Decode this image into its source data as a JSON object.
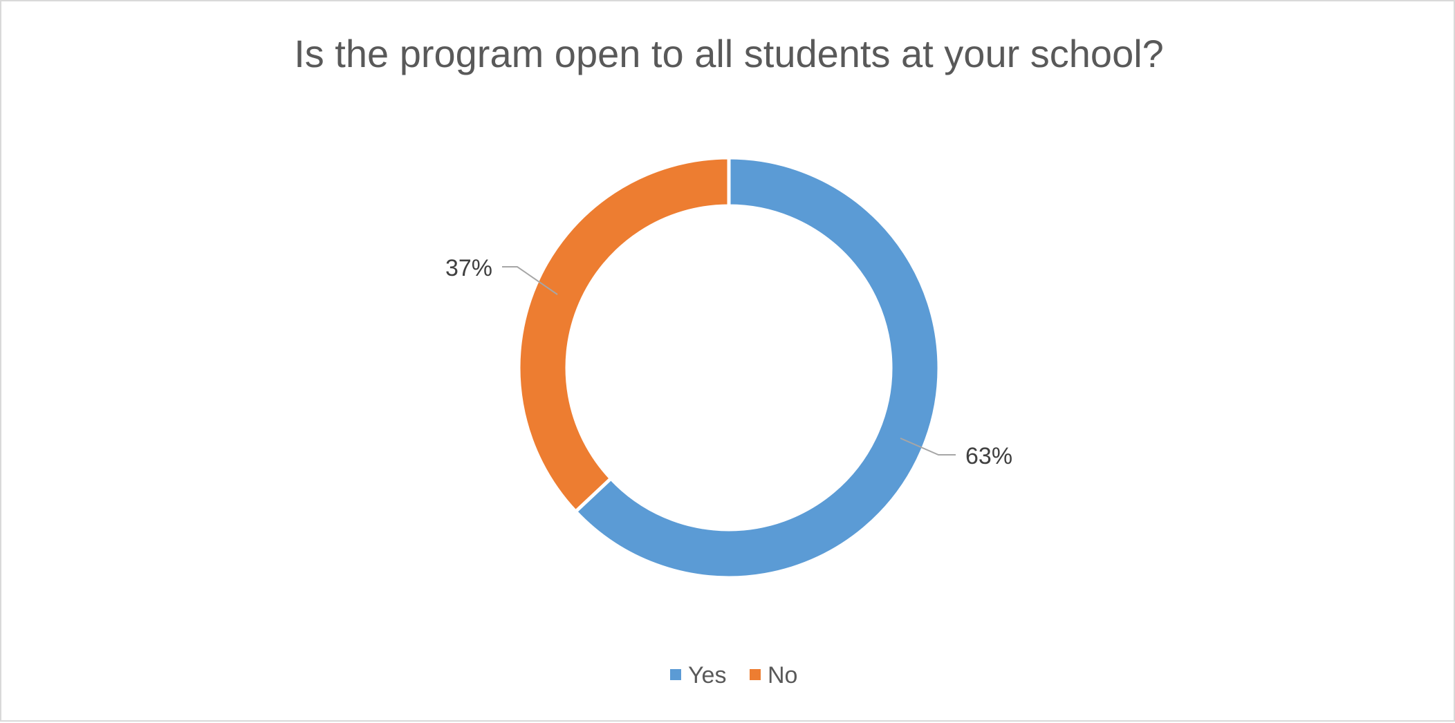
{
  "chart_data": {
    "type": "pie",
    "variant": "doughnut",
    "title": "Is the program open to all students at your school?",
    "categories": [
      "Yes",
      "No"
    ],
    "values": [
      63,
      37
    ],
    "value_labels": [
      "63%",
      "37%"
    ],
    "colors": [
      "#5b9bd5",
      "#ed7d31"
    ],
    "legend": {
      "position": "bottom",
      "entries": [
        "Yes",
        "No"
      ]
    }
  }
}
